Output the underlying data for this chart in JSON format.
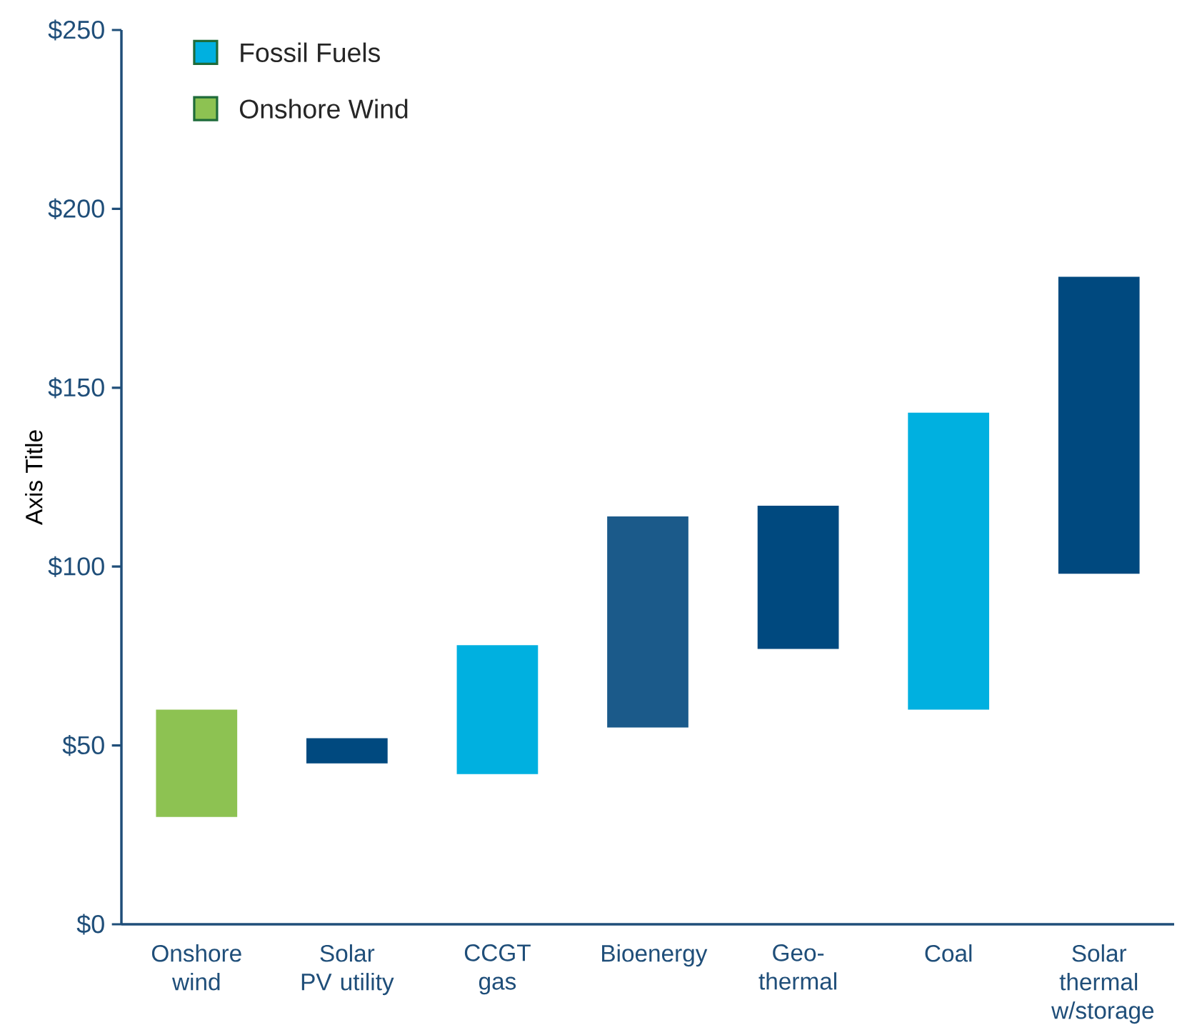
{
  "chart_data": {
    "type": "bar",
    "ylabel": "Axis Title",
    "categories": [
      "Onshore wind",
      "Solar PV utility",
      "CCGT gas",
      "Bioenergy",
      "Geo-thermal",
      "Coal",
      "Solar thermal w/storage"
    ],
    "series": [
      {
        "name": "Fossil Fuels",
        "color": "#00b0e0",
        "values": [
          null,
          null,
          36,
          null,
          null,
          83,
          null
        ],
        "base": [
          null,
          null,
          42,
          null,
          null,
          60,
          null
        ]
      },
      {
        "name": "Onshore Wind",
        "color": "#8dc252",
        "values": [
          30,
          null,
          null,
          null,
          null,
          null,
          null
        ],
        "base": [
          30,
          null,
          null,
          null,
          null,
          null,
          null
        ]
      },
      {
        "colors": [
          null,
          "#00497f",
          null,
          "#1b5a8a",
          "#00497f",
          null,
          "#00497f"
        ],
        "values": [
          null,
          7,
          null,
          59,
          40,
          null,
          83
        ],
        "base": [
          null,
          45,
          null,
          55,
          77,
          null,
          98
        ]
      }
    ],
    "ylim": [
      0,
      250
    ],
    "yticks": [
      {
        "value": 0,
        "label": "$0"
      },
      {
        "value": 50,
        "label": "$50"
      },
      {
        "value": 100,
        "label": "$100"
      },
      {
        "value": 150,
        "label": "$150"
      },
      {
        "value": 200,
        "label": "$200"
      },
      {
        "value": 250,
        "label": "$250"
      }
    ],
    "legend": "top left",
    "grid": false
  }
}
